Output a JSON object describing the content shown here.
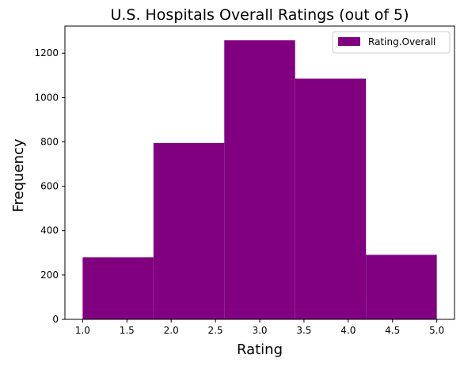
{
  "chart_data": {
    "type": "bar",
    "subtype": "histogram",
    "title": "U.S. Hospitals Overall Ratings (out of 5)",
    "xlabel": "Rating",
    "ylabel": "Frequency",
    "bins": [
      {
        "x0": 1.0,
        "x1": 1.8,
        "value": 280
      },
      {
        "x0": 1.8,
        "x1": 2.6,
        "value": 795
      },
      {
        "x0": 2.6,
        "x1": 3.4,
        "value": 1258
      },
      {
        "x0": 3.4,
        "x1": 4.2,
        "value": 1085
      },
      {
        "x0": 4.2,
        "x1": 5.0,
        "value": 291
      }
    ],
    "xlim": [
      0.8,
      5.2
    ],
    "ylim": [
      0,
      1322
    ],
    "xticks": [
      "1.0",
      "1.5",
      "2.0",
      "2.5",
      "3.0",
      "3.5",
      "4.0",
      "4.5",
      "5.0"
    ],
    "xtick_values": [
      1.0,
      1.5,
      2.0,
      2.5,
      3.0,
      3.5,
      4.0,
      4.5,
      5.0
    ],
    "yticks": [
      "0",
      "200",
      "400",
      "600",
      "800",
      "1000",
      "1200"
    ],
    "ytick_values": [
      0,
      200,
      400,
      600,
      800,
      1000,
      1200
    ],
    "series": [
      {
        "name": "Rating.Overall",
        "color": "#800080"
      }
    ],
    "legend_position": "top-right",
    "grid": false
  }
}
